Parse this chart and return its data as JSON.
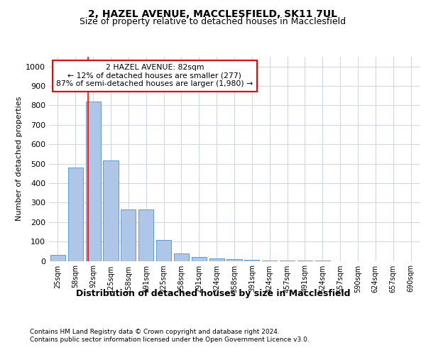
{
  "title1": "2, HAZEL AVENUE, MACCLESFIELD, SK11 7UL",
  "title2": "Size of property relative to detached houses in Macclesfield",
  "xlabel": "Distribution of detached houses by size in Macclesfield",
  "ylabel": "Number of detached properties",
  "bar_labels": [
    "25sqm",
    "58sqm",
    "92sqm",
    "125sqm",
    "158sqm",
    "191sqm",
    "225sqm",
    "258sqm",
    "291sqm",
    "324sqm",
    "358sqm",
    "391sqm",
    "424sqm",
    "457sqm",
    "491sqm",
    "524sqm",
    "557sqm",
    "590sqm",
    "624sqm",
    "657sqm",
    "690sqm"
  ],
  "bar_values": [
    30,
    480,
    820,
    515,
    265,
    265,
    108,
    38,
    20,
    12,
    8,
    5,
    3,
    2,
    1,
    1,
    0,
    0,
    0,
    0,
    0
  ],
  "bar_color": "#aec6e8",
  "bar_edge_color": "#5b9bd5",
  "grid_color": "#d0d8e8",
  "annotation_line1": "2 HAZEL AVENUE: 82sqm",
  "annotation_line2": "← 12% of detached houses are smaller (277)",
  "annotation_line3": "87% of semi-detached houses are larger (1,980) →",
  "red_line_x": 1.72,
  "annotation_box_color": "white",
  "annotation_box_edge": "red",
  "red_line_color": "red",
  "footnote1": "Contains HM Land Registry data © Crown copyright and database right 2024.",
  "footnote2": "Contains public sector information licensed under the Open Government Licence v3.0.",
  "ylim": [
    0,
    1050
  ],
  "yticks": [
    0,
    100,
    200,
    300,
    400,
    500,
    600,
    700,
    800,
    900,
    1000
  ]
}
